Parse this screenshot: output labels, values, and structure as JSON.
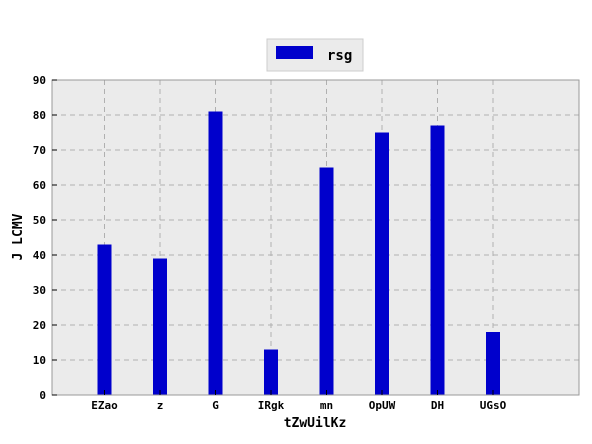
{
  "chart_data": {
    "type": "bar",
    "title": "",
    "xlabel": "tZwUilKz",
    "ylabel": "J LCMV",
    "categories": [
      "EZao",
      "z",
      "G",
      "IRgk",
      "mn",
      "OpUW",
      "DH",
      "UGsO"
    ],
    "series": [
      {
        "name": "rsg",
        "values": [
          43,
          39,
          81,
          13,
          65,
          75,
          77,
          18
        ]
      }
    ],
    "ylim": [
      0,
      90
    ],
    "yticks": [
      0,
      10,
      20,
      30,
      40,
      50,
      60,
      70,
      80,
      90
    ],
    "grid": true,
    "legend_position": "top-center",
    "colors": {
      "bar": "#0000cc",
      "plot_background": "#ebebeb",
      "grid": "#b0b0b0",
      "frame": "#999999"
    }
  }
}
